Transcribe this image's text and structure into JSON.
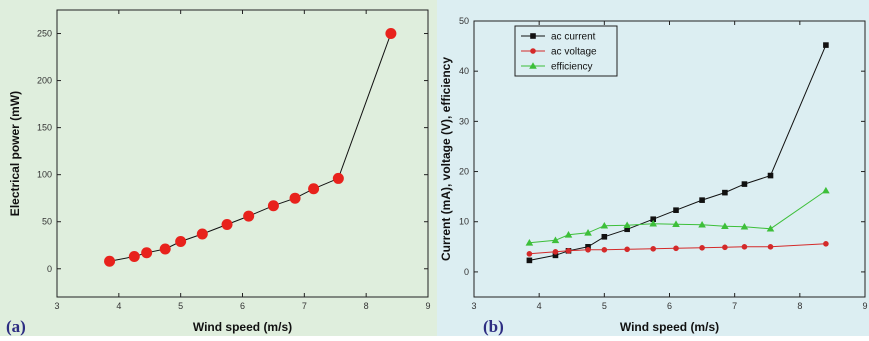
{
  "chart_data": [
    {
      "type": "scatter",
      "panel_label": "(a)",
      "xlabel": "Wind speed (m/s)",
      "ylabel": "Electrical power (mW)",
      "xlim": [
        3,
        9
      ],
      "ylim": [
        -30,
        275
      ],
      "xticks": [
        "3",
        "4",
        "5",
        "6",
        "7",
        "8",
        "9"
      ],
      "yticks": [
        "0",
        "50",
        "100",
        "150",
        "200",
        "250"
      ],
      "series": [
        {
          "x": [
            3.85,
            4.25,
            4.45,
            4.75,
            5.0,
            5.35,
            5.75,
            6.1,
            6.5,
            6.85,
            7.15,
            7.55,
            8.4
          ],
          "y": [
            8,
            13,
            17,
            21,
            29,
            37,
            47,
            56,
            67,
            75,
            85,
            96,
            250
          ],
          "color": "#e8221c"
        }
      ],
      "grid": false
    },
    {
      "type": "line",
      "panel_label": "(b)",
      "xlabel": "Wind speed (m/s)",
      "ylabel": "Current (mA), voltage (V), efficiency",
      "xlim": [
        3,
        9
      ],
      "ylim": [
        -5,
        50
      ],
      "xticks": [
        "3",
        "4",
        "5",
        "6",
        "7",
        "8",
        "9"
      ],
      "yticks": [
        "0",
        "10",
        "20",
        "30",
        "40",
        "50"
      ],
      "legend_position": "top-left",
      "series": [
        {
          "name": "ac current",
          "marker": "square",
          "color": "#111111",
          "x": [
            3.85,
            4.25,
            4.45,
            4.75,
            5.0,
            5.35,
            5.75,
            6.1,
            6.5,
            6.85,
            7.15,
            7.55,
            8.4
          ],
          "y": [
            2.3,
            3.3,
            4.2,
            5.0,
            7.0,
            8.5,
            10.5,
            12.3,
            14.3,
            15.8,
            17.5,
            19.2,
            45.2
          ]
        },
        {
          "name": "ac voltage",
          "marker": "circle",
          "color": "#d42a2a",
          "x": [
            3.85,
            4.25,
            4.45,
            4.75,
            5.0,
            5.35,
            5.75,
            6.1,
            6.5,
            6.85,
            7.15,
            7.55,
            8.4
          ],
          "y": [
            3.6,
            4.0,
            4.2,
            4.4,
            4.4,
            4.5,
            4.6,
            4.7,
            4.8,
            4.9,
            5.0,
            5.0,
            5.6
          ]
        },
        {
          "name": "efficiency",
          "marker": "triangle",
          "color": "#3dbf3a",
          "x": [
            3.85,
            4.25,
            4.45,
            4.75,
            5.0,
            5.35,
            5.75,
            6.1,
            6.5,
            6.85,
            7.15,
            7.55,
            8.4
          ],
          "y": [
            5.8,
            6.3,
            7.4,
            7.8,
            9.2,
            9.3,
            9.6,
            9.5,
            9.4,
            9.1,
            9.0,
            8.6,
            16.2
          ]
        }
      ],
      "grid": false
    }
  ]
}
